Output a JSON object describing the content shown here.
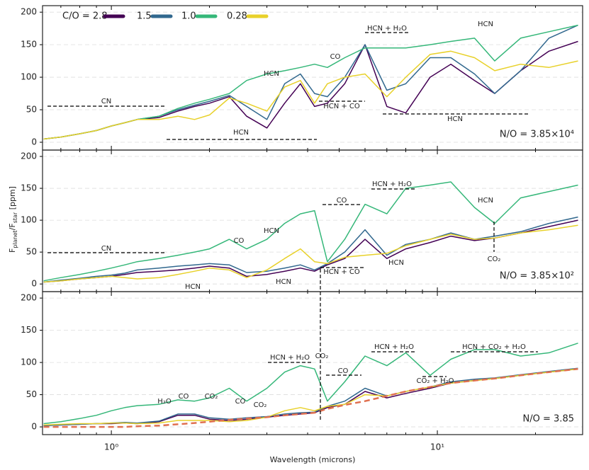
{
  "chart_data": [
    {
      "type": "line",
      "xscale": "log",
      "xlim": [
        0.615,
        27.9
      ],
      "ylim": [
        -12,
        210
      ],
      "yticks": [
        0,
        50,
        100,
        150,
        200
      ],
      "grid": true,
      "legend": "upper left",
      "label": "N/O = 3.85×10⁴",
      "x": [
        0.62,
        0.7,
        0.8,
        0.9,
        1.0,
        1.1,
        1.2,
        1.4,
        1.6,
        1.8,
        2.0,
        2.3,
        2.6,
        3.0,
        3.4,
        3.8,
        4.2,
        4.6,
        5.2,
        6.0,
        7.0,
        8.0,
        9.5,
        11,
        13,
        15,
        18,
        22,
        27
      ],
      "series": [
        {
          "name": "C/O = 2.8",
          "color": "#440154",
          "values": [
            5,
            8,
            13,
            18,
            25,
            30,
            35,
            38,
            48,
            55,
            60,
            70,
            40,
            22,
            60,
            90,
            55,
            60,
            90,
            150,
            55,
            45,
            100,
            120,
            95,
            75,
            110,
            140,
            155
          ]
        },
        {
          "name": "1.5",
          "color": "#31688e",
          "values": [
            5,
            8,
            13,
            18,
            25,
            30,
            35,
            40,
            50,
            57,
            63,
            72,
            55,
            35,
            90,
            105,
            75,
            70,
            100,
            150,
            80,
            90,
            130,
            130,
            105,
            75,
            110,
            160,
            180
          ]
        },
        {
          "name": "1.0",
          "color": "#35b779",
          "values": [
            5,
            8,
            13,
            18,
            25,
            30,
            35,
            40,
            52,
            60,
            66,
            75,
            95,
            105,
            110,
            115,
            120,
            115,
            130,
            145,
            145,
            145,
            150,
            155,
            160,
            125,
            160,
            170,
            180
          ]
        },
        {
          "name": "0.28",
          "color": "#e8d12a",
          "values": [
            5,
            8,
            13,
            18,
            25,
            30,
            35,
            35,
            40,
            35,
            42,
            68,
            60,
            48,
            85,
            95,
            60,
            90,
            100,
            105,
            70,
            100,
            135,
            140,
            130,
            110,
            120,
            115,
            125
          ]
        }
      ],
      "annotations": [
        "CN",
        "HCN",
        "HCN",
        "CO",
        "HCN + H₂O",
        "HCN + CO",
        "HCN",
        "HCN"
      ]
    },
    {
      "type": "line",
      "xscale": "log",
      "xlim": [
        0.615,
        27.9
      ],
      "ylim": [
        -12,
        210
      ],
      "yticks": [
        0,
        50,
        100,
        150,
        200
      ],
      "grid": true,
      "label": "N/O = 3.85×10²",
      "ylabel": [
        "F",
        "planet",
        "/F",
        "star",
        " [ppm]"
      ],
      "x": [
        0.62,
        0.7,
        0.8,
        0.9,
        1.0,
        1.1,
        1.2,
        1.4,
        1.6,
        1.8,
        2.0,
        2.3,
        2.6,
        3.0,
        3.4,
        3.8,
        4.2,
        4.6,
        5.2,
        6.0,
        7.0,
        8.0,
        9.5,
        11,
        13,
        15,
        18,
        22,
        27
      ],
      "series": [
        {
          "color": "#440154",
          "values": [
            3,
            5,
            8,
            10,
            12,
            15,
            18,
            20,
            22,
            25,
            28,
            25,
            12,
            15,
            20,
            25,
            20,
            30,
            40,
            70,
            40,
            55,
            65,
            75,
            68,
            72,
            80,
            90,
            100
          ]
        },
        {
          "color": "#31688e",
          "values": [
            3,
            6,
            9,
            12,
            14,
            17,
            22,
            25,
            28,
            30,
            32,
            30,
            18,
            20,
            25,
            30,
            22,
            32,
            50,
            85,
            45,
            62,
            70,
            80,
            70,
            75,
            82,
            95,
            105
          ]
        },
        {
          "color": "#35b779",
          "values": [
            5,
            10,
            15,
            20,
            25,
            30,
            35,
            40,
            45,
            50,
            55,
            70,
            55,
            70,
            95,
            110,
            115,
            35,
            70,
            125,
            110,
            150,
            155,
            160,
            120,
            95,
            135,
            145,
            155
          ]
        },
        {
          "color": "#e8d12a",
          "values": [
            3,
            5,
            8,
            10,
            12,
            10,
            8,
            10,
            15,
            20,
            25,
            22,
            10,
            22,
            40,
            55,
            35,
            32,
            42,
            45,
            48,
            60,
            70,
            78,
            70,
            72,
            80,
            85,
            92
          ]
        }
      ],
      "annotations": [
        "CN",
        "CO",
        "HCN",
        "HCN",
        "HCN",
        "CO",
        "HCN + H₂O",
        "HCN",
        "HCN + CO",
        "HCN",
        "CO₂"
      ]
    },
    {
      "type": "line",
      "xscale": "log",
      "xlim": [
        0.615,
        27.9
      ],
      "ylim": [
        -12,
        210
      ],
      "yticks": [
        0,
        50,
        100,
        150,
        200
      ],
      "grid": true,
      "label": "N/O = 3.85",
      "xlabel": "Wavelength (microns)",
      "xticks": [
        {
          "value": 1,
          "label": "10⁰"
        },
        {
          "value": 10,
          "label": "10¹"
        }
      ],
      "xminor": [
        0.7,
        0.8,
        0.9,
        2,
        3,
        4,
        5,
        6,
        7,
        8,
        9,
        20
      ],
      "x": [
        0.62,
        0.7,
        0.8,
        0.9,
        1.0,
        1.1,
        1.2,
        1.4,
        1.6,
        1.8,
        2.0,
        2.3,
        2.6,
        3.0,
        3.4,
        3.8,
        4.2,
        4.6,
        5.2,
        6.0,
        7.0,
        8.0,
        9.5,
        11,
        13,
        15,
        18,
        22,
        27
      ],
      "series": [
        {
          "color": "#440154",
          "values": [
            2,
            3,
            4,
            5,
            5,
            6,
            5,
            8,
            18,
            18,
            12,
            10,
            12,
            15,
            18,
            20,
            22,
            30,
            35,
            55,
            45,
            52,
            60,
            68,
            72,
            75,
            80,
            85,
            90
          ]
        },
        {
          "color": "#31688e",
          "values": [
            2,
            3,
            4,
            5,
            6,
            7,
            6,
            9,
            20,
            20,
            14,
            12,
            14,
            16,
            20,
            22,
            23,
            32,
            40,
            60,
            48,
            55,
            62,
            70,
            74,
            76,
            81,
            86,
            91
          ]
        },
        {
          "color": "#35b779",
          "values": [
            5,
            8,
            13,
            18,
            25,
            30,
            33,
            35,
            42,
            40,
            45,
            60,
            40,
            60,
            85,
            95,
            90,
            40,
            70,
            110,
            95,
            115,
            80,
            105,
            120,
            120,
            110,
            115,
            130
          ]
        },
        {
          "color": "#e8d12a",
          "values": [
            3,
            4,
            5,
            5,
            6,
            6,
            5,
            6,
            10,
            10,
            10,
            8,
            10,
            15,
            25,
            30,
            25,
            32,
            35,
            50,
            48,
            55,
            62,
            68,
            72,
            75,
            80,
            85,
            90
          ]
        },
        {
          "color": "#e07050",
          "dash": true,
          "values": [
            0,
            0,
            0,
            0,
            0,
            0,
            1,
            2,
            4,
            6,
            8,
            11,
            13,
            15,
            18,
            20,
            22,
            28,
            34,
            40,
            48,
            55,
            62,
            68,
            72,
            75,
            80,
            85,
            90
          ]
        }
      ],
      "annotations": [
        "H₂O",
        "CO",
        "CO₂",
        "CO",
        "CO₂",
        "HCN + H₂O",
        "CO₂",
        "CO",
        "HCN + H₂O",
        "CO₂ + H₂O",
        "HCN + CO₂ + H₂O"
      ]
    }
  ]
}
